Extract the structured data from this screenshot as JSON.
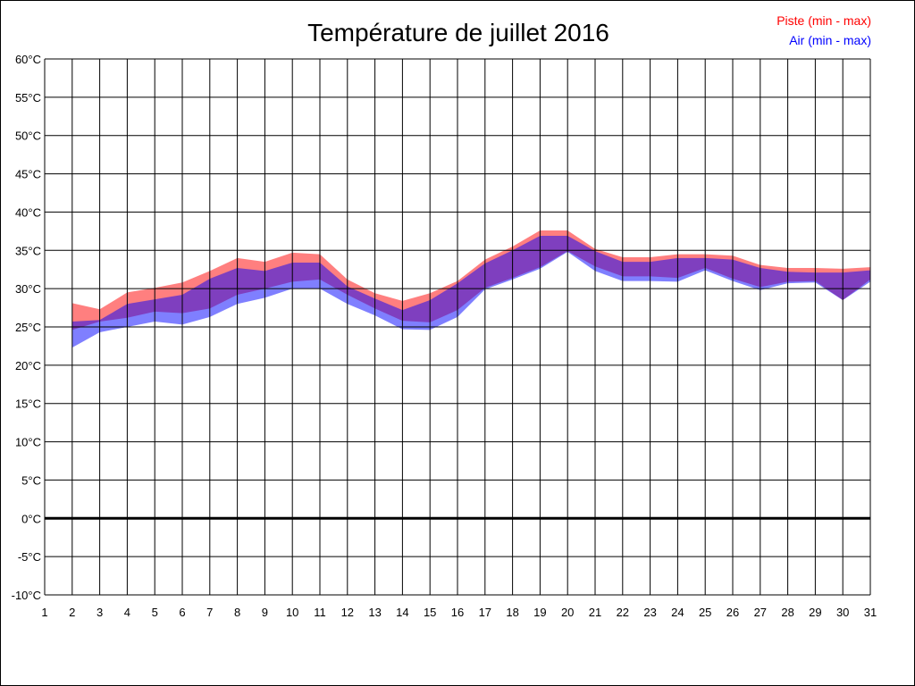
{
  "chart_data": {
    "type": "area",
    "title": "Température de juillet 2016",
    "xlabel": "",
    "ylabel": "",
    "x": [
      2,
      3,
      4,
      5,
      6,
      7,
      8,
      9,
      10,
      11,
      12,
      13,
      14,
      15,
      16,
      17,
      18,
      19,
      20,
      21,
      22,
      23,
      24,
      25,
      26,
      27,
      28,
      29,
      30,
      31
    ],
    "xlim": [
      1,
      31
    ],
    "ylim": [
      -10,
      60
    ],
    "y_unit": "°C",
    "y_ticks": [
      -10,
      -5,
      0,
      5,
      10,
      15,
      20,
      25,
      30,
      35,
      40,
      45,
      50,
      55,
      60
    ],
    "x_ticks": [
      1,
      2,
      3,
      4,
      5,
      6,
      7,
      8,
      9,
      10,
      11,
      12,
      13,
      14,
      15,
      16,
      17,
      18,
      19,
      20,
      21,
      22,
      23,
      24,
      25,
      26,
      27,
      28,
      29,
      30,
      31
    ],
    "grid": true,
    "legend_position": "top-right",
    "series": [
      {
        "name": "Piste (min - max)",
        "color": "#ff0000",
        "min": [
          24.6,
          25.7,
          26.2,
          27.0,
          26.8,
          27.4,
          29.2,
          30.0,
          30.9,
          31.2,
          29.2,
          27.4,
          25.8,
          25.6,
          27.2,
          30.1,
          31.4,
          32.8,
          34.9,
          32.9,
          31.6,
          31.6,
          31.4,
          32.7,
          31.3,
          30.2,
          30.9,
          31.0,
          28.5,
          31.2
        ],
        "max": [
          28.1,
          27.3,
          29.5,
          30.1,
          30.8,
          32.3,
          34.0,
          33.5,
          34.7,
          34.5,
          31.2,
          29.4,
          28.4,
          29.4,
          31.0,
          33.8,
          35.5,
          37.6,
          37.6,
          35.2,
          34.1,
          34.1,
          34.5,
          34.5,
          34.3,
          33.1,
          32.7,
          32.7,
          32.6,
          32.8
        ]
      },
      {
        "name": "Air (min - max)",
        "color": "#0000ff",
        "min": [
          22.3,
          24.3,
          25.0,
          25.7,
          25.3,
          26.3,
          28.0,
          28.8,
          30.0,
          30.0,
          28.0,
          26.5,
          24.7,
          24.6,
          26.3,
          29.9,
          31.2,
          32.6,
          34.8,
          32.3,
          31.0,
          31.0,
          30.9,
          32.4,
          31.0,
          29.8,
          30.7,
          30.8,
          28.5,
          30.9
        ],
        "max": [
          25.7,
          25.9,
          28.0,
          28.6,
          29.2,
          31.3,
          32.7,
          32.3,
          33.4,
          33.4,
          30.3,
          28.7,
          27.2,
          28.5,
          30.7,
          33.3,
          35.0,
          36.9,
          36.9,
          34.9,
          33.5,
          33.5,
          34.0,
          34.0,
          33.8,
          32.7,
          32.2,
          32.1,
          32.1,
          32.4
        ]
      }
    ]
  }
}
